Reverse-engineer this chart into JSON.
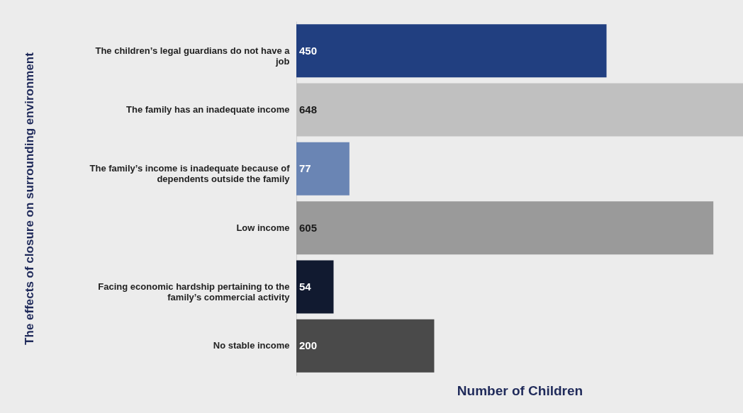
{
  "chart_data": {
    "type": "bar",
    "orientation": "horizontal",
    "xlabel": "Number of Children",
    "ylabel": "The effects of closure on surrounding environment",
    "categories": [
      "The children’s legal guardians do not have a job",
      "The family has an inadequate income",
      "The family’s income is inadequate because of dependents outside the family",
      "Low income",
      "Facing economic hardship pertaining to the family’s commercial activity",
      "No stable income"
    ],
    "values": [
      450,
      648,
      77,
      605,
      54,
      200
    ],
    "colors": [
      "#213f80",
      "#c0c0c0",
      "#6a85b4",
      "#9a9a9a",
      "#111a30",
      "#4a4a4a"
    ],
    "data_labels": true,
    "grid": false
  }
}
